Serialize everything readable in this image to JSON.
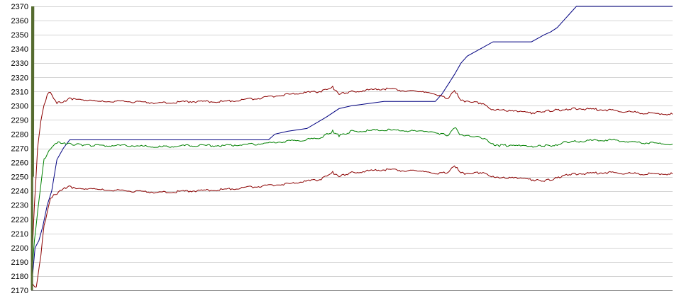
{
  "chart_data": {
    "type": "line",
    "title": "",
    "xlabel": "",
    "ylabel": "",
    "ylim": [
      2170,
      2370
    ],
    "yticks": [
      2170,
      2180,
      2190,
      2200,
      2210,
      2220,
      2230,
      2240,
      2250,
      2260,
      2270,
      2280,
      2290,
      2300,
      2310,
      2320,
      2330,
      2340,
      2350,
      2360,
      2370
    ],
    "xlim": [
      0,
      100
    ],
    "grid": true,
    "legend": "none",
    "x_tick_labels": [],
    "series": [
      {
        "color": "#000080",
        "x": [
          0,
          0.6,
          1.2,
          1.8,
          2.5,
          3.2,
          4,
          5,
          6,
          37,
          38,
          40,
          43,
          46,
          48,
          50,
          55,
          63,
          64,
          65,
          66,
          67,
          68,
          70,
          72,
          78,
          80,
          81,
          82,
          83,
          84,
          85,
          100
        ],
        "y": [
          2170,
          2200,
          2205,
          2215,
          2230,
          2240,
          2262,
          2270,
          2276,
          2276,
          2280,
          2282,
          2284,
          2292,
          2298,
          2300,
          2303,
          2303,
          2308,
          2315,
          2322,
          2330,
          2335,
          2340,
          2345,
          2345,
          2350,
          2352,
          2355,
          2360,
          2365,
          2370,
          2370
        ]
      },
      {
        "color": "#8b0000",
        "x": [
          0,
          0.8,
          1.5,
          2,
          2.5,
          3,
          3.5,
          4,
          4.5,
          5,
          6,
          7,
          10,
          15,
          20,
          25,
          30,
          35,
          40,
          45,
          47,
          48,
          50,
          55,
          60,
          63,
          65,
          66,
          67,
          68,
          70,
          72,
          73,
          75,
          78,
          80,
          82,
          83,
          85,
          90,
          95,
          100
        ],
        "y": [
          2175,
          2172,
          2195,
          2215,
          2225,
          2235,
          2237,
          2238,
          2240,
          2242,
          2243,
          2241,
          2241,
          2240,
          2239,
          2240,
          2241,
          2243,
          2245,
          2248,
          2253,
          2250,
          2253,
          2255,
          2254,
          2252,
          2253,
          2258,
          2253,
          2252,
          2253,
          2250,
          2249,
          2249,
          2248,
          2247,
          2249,
          2251,
          2252,
          2253,
          2252,
          2252
        ]
      },
      {
        "color": "#008000",
        "x": [
          0,
          0.5,
          1,
          1.5,
          2,
          2.5,
          3,
          3.5,
          4,
          5,
          6,
          10,
          15,
          20,
          25,
          30,
          35,
          40,
          45,
          47,
          48,
          50,
          55,
          60,
          63,
          65,
          66,
          67,
          68,
          70,
          72,
          73,
          75,
          78,
          80,
          82,
          83,
          85,
          90,
          95,
          100
        ],
        "y": [
          2175,
          2205,
          2225,
          2245,
          2262,
          2266,
          2270,
          2272,
          2274,
          2274,
          2273,
          2272,
          2272,
          2271,
          2272,
          2272,
          2273,
          2275,
          2277,
          2282,
          2279,
          2282,
          2283,
          2282,
          2281,
          2279,
          2285,
          2279,
          2279,
          2278,
          2273,
          2272,
          2272,
          2271,
          2272,
          2272,
          2274,
          2275,
          2276,
          2274,
          2273
        ]
      },
      {
        "color": "#8b0000",
        "x": [
          0,
          0.5,
          1,
          1.5,
          2,
          2.5,
          3,
          3.5,
          4,
          5,
          6,
          7,
          10,
          15,
          20,
          25,
          30,
          35,
          40,
          45,
          47,
          48,
          50,
          55,
          60,
          63,
          65,
          66,
          67,
          68,
          70,
          72,
          73,
          75,
          78,
          80,
          82,
          83,
          85,
          90,
          95,
          100
        ],
        "y": [
          2180,
          2230,
          2270,
          2290,
          2300,
          2308,
          2310,
          2305,
          2302,
          2303,
          2305,
          2304,
          2303,
          2303,
          2302,
          2303,
          2303,
          2305,
          2308,
          2310,
          2313,
          2308,
          2310,
          2312,
          2310,
          2308,
          2305,
          2311,
          2304,
          2303,
          2302,
          2297,
          2297,
          2296,
          2295,
          2296,
          2297,
          2297,
          2298,
          2297,
          2295,
          2294
        ]
      },
      {
        "color": "#556b2f",
        "x": [
          0,
          0.05,
          0.1,
          0.15,
          0.2
        ],
        "y": [
          2170,
          2370,
          2330,
          2250,
          2370
        ]
      }
    ]
  }
}
